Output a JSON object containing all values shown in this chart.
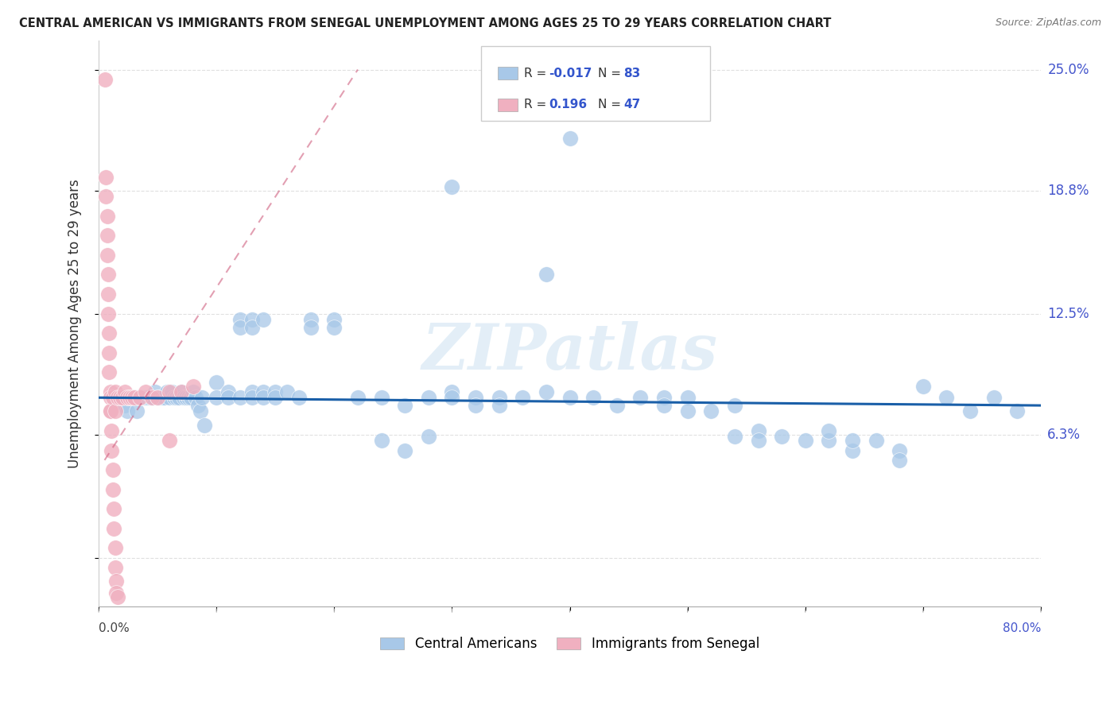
{
  "title": "CENTRAL AMERICAN VS IMMIGRANTS FROM SENEGAL UNEMPLOYMENT AMONG AGES 25 TO 29 YEARS CORRELATION CHART",
  "source": "Source: ZipAtlas.com",
  "ylabel": "Unemployment Among Ages 25 to 29 years",
  "xlim": [
    0,
    0.8
  ],
  "ylim": [
    -0.025,
    0.265
  ],
  "yticks": [
    0.0,
    0.063,
    0.125,
    0.188,
    0.25
  ],
  "ytick_labels": [
    "",
    "6.3%",
    "12.5%",
    "18.8%",
    "25.0%"
  ],
  "watermark": "ZIPatlas",
  "blue_color": "#a8c8e8",
  "pink_color": "#f0b0c0",
  "blue_line_color": "#1a5fa8",
  "pink_line_color": "#d06080",
  "blue_scatter": [
    [
      0.018,
      0.082
    ],
    [
      0.02,
      0.082
    ],
    [
      0.022,
      0.078
    ],
    [
      0.024,
      0.075
    ],
    [
      0.025,
      0.082
    ],
    [
      0.028,
      0.082
    ],
    [
      0.03,
      0.082
    ],
    [
      0.032,
      0.075
    ],
    [
      0.034,
      0.082
    ],
    [
      0.036,
      0.082
    ],
    [
      0.038,
      0.082
    ],
    [
      0.04,
      0.082
    ],
    [
      0.042,
      0.082
    ],
    [
      0.044,
      0.082
    ],
    [
      0.046,
      0.082
    ],
    [
      0.048,
      0.085
    ],
    [
      0.05,
      0.082
    ],
    [
      0.052,
      0.082
    ],
    [
      0.054,
      0.082
    ],
    [
      0.056,
      0.082
    ],
    [
      0.058,
      0.085
    ],
    [
      0.06,
      0.082
    ],
    [
      0.062,
      0.085
    ],
    [
      0.064,
      0.082
    ],
    [
      0.066,
      0.082
    ],
    [
      0.068,
      0.082
    ],
    [
      0.07,
      0.085
    ],
    [
      0.072,
      0.082
    ],
    [
      0.074,
      0.082
    ],
    [
      0.076,
      0.082
    ],
    [
      0.078,
      0.082
    ],
    [
      0.08,
      0.085
    ],
    [
      0.082,
      0.082
    ],
    [
      0.084,
      0.078
    ],
    [
      0.086,
      0.075
    ],
    [
      0.088,
      0.082
    ],
    [
      0.09,
      0.068
    ],
    [
      0.1,
      0.09
    ],
    [
      0.1,
      0.082
    ],
    [
      0.11,
      0.085
    ],
    [
      0.11,
      0.082
    ],
    [
      0.12,
      0.122
    ],
    [
      0.12,
      0.118
    ],
    [
      0.12,
      0.082
    ],
    [
      0.13,
      0.122
    ],
    [
      0.13,
      0.118
    ],
    [
      0.13,
      0.085
    ],
    [
      0.13,
      0.082
    ],
    [
      0.14,
      0.122
    ],
    [
      0.14,
      0.085
    ],
    [
      0.14,
      0.082
    ],
    [
      0.15,
      0.085
    ],
    [
      0.15,
      0.082
    ],
    [
      0.16,
      0.085
    ],
    [
      0.17,
      0.082
    ],
    [
      0.18,
      0.122
    ],
    [
      0.18,
      0.118
    ],
    [
      0.2,
      0.122
    ],
    [
      0.2,
      0.118
    ],
    [
      0.22,
      0.082
    ],
    [
      0.24,
      0.082
    ],
    [
      0.26,
      0.078
    ],
    [
      0.28,
      0.082
    ],
    [
      0.3,
      0.085
    ],
    [
      0.3,
      0.082
    ],
    [
      0.32,
      0.082
    ],
    [
      0.32,
      0.078
    ],
    [
      0.34,
      0.082
    ],
    [
      0.34,
      0.078
    ],
    [
      0.36,
      0.082
    ],
    [
      0.38,
      0.085
    ],
    [
      0.38,
      0.145
    ],
    [
      0.4,
      0.215
    ],
    [
      0.4,
      0.082
    ],
    [
      0.42,
      0.082
    ],
    [
      0.44,
      0.078
    ],
    [
      0.46,
      0.082
    ],
    [
      0.48,
      0.082
    ],
    [
      0.48,
      0.078
    ],
    [
      0.5,
      0.082
    ],
    [
      0.5,
      0.075
    ],
    [
      0.52,
      0.075
    ],
    [
      0.54,
      0.078
    ],
    [
      0.54,
      0.062
    ],
    [
      0.56,
      0.065
    ],
    [
      0.56,
      0.06
    ],
    [
      0.58,
      0.062
    ],
    [
      0.6,
      0.06
    ],
    [
      0.62,
      0.06
    ],
    [
      0.62,
      0.065
    ],
    [
      0.64,
      0.055
    ],
    [
      0.64,
      0.06
    ],
    [
      0.66,
      0.06
    ],
    [
      0.68,
      0.055
    ],
    [
      0.68,
      0.05
    ],
    [
      0.7,
      0.088
    ],
    [
      0.72,
      0.082
    ],
    [
      0.74,
      0.075
    ],
    [
      0.76,
      0.082
    ],
    [
      0.78,
      0.075
    ],
    [
      0.3,
      0.19
    ],
    [
      0.28,
      0.062
    ],
    [
      0.24,
      0.06
    ],
    [
      0.26,
      0.055
    ]
  ],
  "pink_scatter": [
    [
      0.005,
      0.245
    ],
    [
      0.006,
      0.195
    ],
    [
      0.006,
      0.185
    ],
    [
      0.007,
      0.175
    ],
    [
      0.007,
      0.165
    ],
    [
      0.007,
      0.155
    ],
    [
      0.008,
      0.145
    ],
    [
      0.008,
      0.135
    ],
    [
      0.008,
      0.125
    ],
    [
      0.009,
      0.115
    ],
    [
      0.009,
      0.105
    ],
    [
      0.009,
      0.095
    ],
    [
      0.01,
      0.085
    ],
    [
      0.01,
      0.075
    ],
    [
      0.011,
      0.065
    ],
    [
      0.011,
      0.055
    ],
    [
      0.012,
      0.045
    ],
    [
      0.012,
      0.035
    ],
    [
      0.013,
      0.025
    ],
    [
      0.013,
      0.015
    ],
    [
      0.014,
      0.005
    ],
    [
      0.014,
      -0.005
    ],
    [
      0.015,
      -0.012
    ],
    [
      0.015,
      -0.018
    ],
    [
      0.016,
      -0.02
    ],
    [
      0.01,
      0.082
    ],
    [
      0.01,
      0.075
    ],
    [
      0.012,
      0.082
    ],
    [
      0.014,
      0.085
    ],
    [
      0.014,
      0.075
    ],
    [
      0.016,
      0.082
    ],
    [
      0.018,
      0.082
    ],
    [
      0.02,
      0.082
    ],
    [
      0.022,
      0.085
    ],
    [
      0.024,
      0.082
    ],
    [
      0.026,
      0.082
    ],
    [
      0.028,
      0.082
    ],
    [
      0.03,
      0.082
    ],
    [
      0.035,
      0.082
    ],
    [
      0.04,
      0.085
    ],
    [
      0.045,
      0.082
    ],
    [
      0.05,
      0.082
    ],
    [
      0.06,
      0.085
    ],
    [
      0.06,
      0.06
    ],
    [
      0.07,
      0.085
    ],
    [
      0.08,
      0.088
    ]
  ],
  "blue_trend_x": [
    0.0,
    0.8
  ],
  "blue_trend_y": [
    0.082,
    0.078
  ],
  "pink_trend_x": [
    0.005,
    0.22
  ],
  "pink_trend_y": [
    0.05,
    0.25
  ],
  "title_fontsize": 10.5,
  "grid_color": "#dddddd"
}
